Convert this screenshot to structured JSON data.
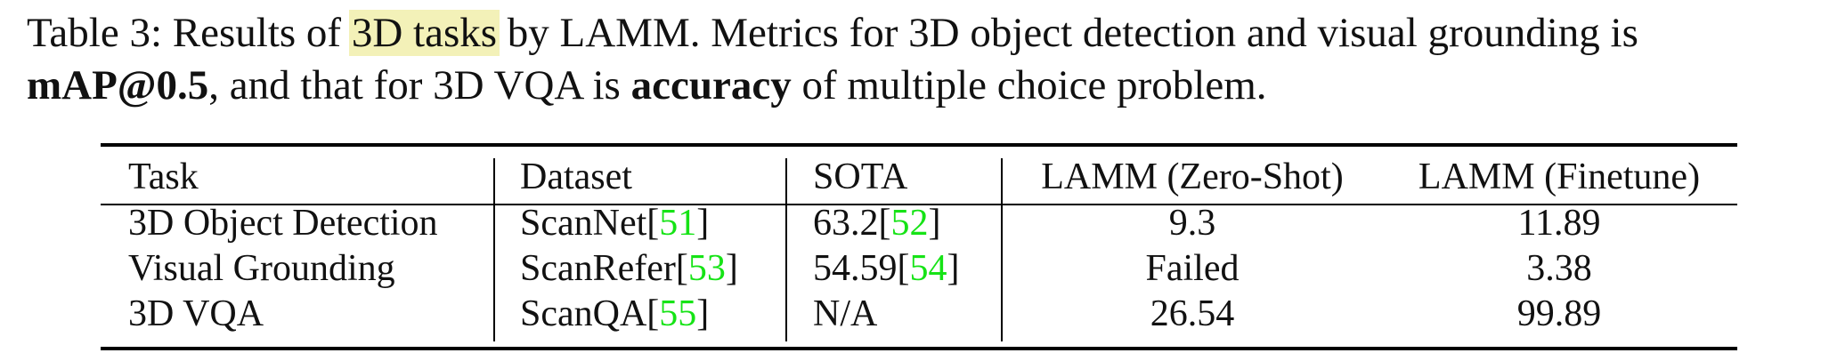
{
  "caption": {
    "line1_prefix": "Table 3: Results of ",
    "line1_highlight": "3D tasks",
    "line1_suffix": " by LAMM. Metrics for 3D object detection and visual grounding is",
    "line2_bold1": "mAP@0.5",
    "line2_mid": ", and that for 3D VQA is ",
    "line2_bold2": "accuracy",
    "line2_suffix": " of multiple choice problem."
  },
  "table": {
    "headers": [
      "Task",
      "Dataset",
      "SOTA",
      "LAMM (Zero-Shot)",
      "LAMM (Finetune)"
    ],
    "rows": [
      {
        "task": "3D Object Detection",
        "dataset": "ScanNet[",
        "dataset_ref": "51",
        "dataset_close": "]",
        "sota": "63.2[",
        "sota_ref": "52",
        "sota_close": "]",
        "zero_shot": "9.3",
        "finetune": "11.89"
      },
      {
        "task": "Visual Grounding",
        "dataset": "ScanRefer[",
        "dataset_ref": "53",
        "dataset_close": "]",
        "sota": "54.59[",
        "sota_ref": "54",
        "sota_close": "]",
        "zero_shot": "Failed",
        "finetune": "3.38"
      },
      {
        "task": "3D VQA",
        "dataset": "ScanQA[",
        "dataset_ref": "55",
        "dataset_close": "]",
        "sota": "N/A",
        "sota_ref": "",
        "sota_close": "",
        "zero_shot": "26.54",
        "finetune": "99.89"
      }
    ]
  },
  "colors": {
    "highlight": "#f3f1b8",
    "citation": "#16e316"
  }
}
